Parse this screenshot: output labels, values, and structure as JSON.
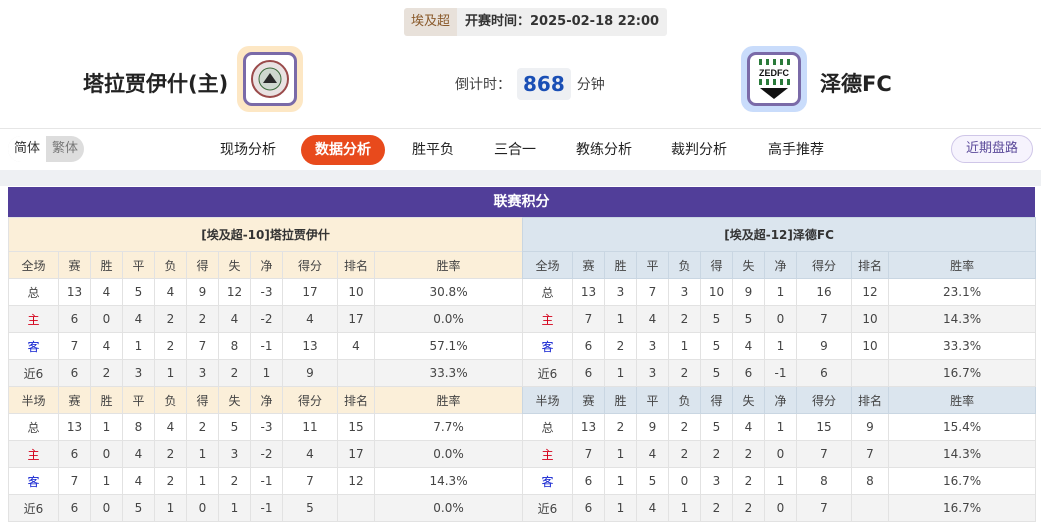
{
  "header": {
    "league": "埃及超",
    "start_time": "开赛时间：2025-02-18 22:00",
    "home_team": "塔拉贾伊什(主)",
    "away_team": "泽德FC",
    "countdown_label": "倒计时：",
    "countdown_value": "868",
    "countdown_unit": "分钟",
    "away_logo_text": "ZEDFC"
  },
  "nav": {
    "lang": [
      "简体",
      "繁体"
    ],
    "items": [
      "现场分析",
      "数据分析",
      "胜平负",
      "三合一",
      "教练分析",
      "裁判分析",
      "高手推荐"
    ],
    "active": 1,
    "recent": "近期盘路"
  },
  "colors": {
    "accent": "#e84a1c",
    "title_bar": "#513e99",
    "home_header": "#fbefd9",
    "away_header": "#dbe5ee"
  },
  "section_title": "联赛积分",
  "columns_full": [
    "全场",
    "赛",
    "胜",
    "平",
    "负",
    "得",
    "失",
    "净",
    "得分",
    "排名",
    "胜率"
  ],
  "columns_half": [
    "半场",
    "赛",
    "胜",
    "平",
    "负",
    "得",
    "失",
    "净",
    "得分",
    "排名",
    "胜率"
  ],
  "home": {
    "title": "[埃及超-10]塔拉贾伊什",
    "full": [
      [
        "总",
        "13",
        "4",
        "5",
        "4",
        "9",
        "12",
        "-3",
        "17",
        "10",
        "30.8%"
      ],
      [
        "主",
        "6",
        "0",
        "4",
        "2",
        "2",
        "4",
        "-2",
        "4",
        "17",
        "0.0%"
      ],
      [
        "客",
        "7",
        "4",
        "1",
        "2",
        "7",
        "8",
        "-1",
        "13",
        "4",
        "57.1%"
      ],
      [
        "近6",
        "6",
        "2",
        "3",
        "1",
        "3",
        "2",
        "1",
        "9",
        "",
        "33.3%"
      ]
    ],
    "half": [
      [
        "总",
        "13",
        "1",
        "8",
        "4",
        "2",
        "5",
        "-3",
        "11",
        "15",
        "7.7%"
      ],
      [
        "主",
        "6",
        "0",
        "4",
        "2",
        "1",
        "3",
        "-2",
        "4",
        "17",
        "0.0%"
      ],
      [
        "客",
        "7",
        "1",
        "4",
        "2",
        "1",
        "2",
        "-1",
        "7",
        "12",
        "14.3%"
      ],
      [
        "近6",
        "6",
        "0",
        "5",
        "1",
        "0",
        "1",
        "-1",
        "5",
        "",
        "0.0%"
      ]
    ]
  },
  "away": {
    "title": "[埃及超-12]泽德FC",
    "full": [
      [
        "总",
        "13",
        "3",
        "7",
        "3",
        "10",
        "9",
        "1",
        "16",
        "12",
        "23.1%"
      ],
      [
        "主",
        "7",
        "1",
        "4",
        "2",
        "5",
        "5",
        "0",
        "7",
        "10",
        "14.3%"
      ],
      [
        "客",
        "6",
        "2",
        "3",
        "1",
        "5",
        "4",
        "1",
        "9",
        "10",
        "33.3%"
      ],
      [
        "近6",
        "6",
        "1",
        "3",
        "2",
        "5",
        "6",
        "-1",
        "6",
        "",
        "16.7%"
      ]
    ],
    "half": [
      [
        "总",
        "13",
        "2",
        "9",
        "2",
        "5",
        "4",
        "1",
        "15",
        "9",
        "15.4%"
      ],
      [
        "主",
        "7",
        "1",
        "4",
        "2",
        "2",
        "2",
        "0",
        "7",
        "7",
        "14.3%"
      ],
      [
        "客",
        "6",
        "1",
        "5",
        "0",
        "3",
        "2",
        "1",
        "8",
        "8",
        "16.7%"
      ],
      [
        "近6",
        "6",
        "1",
        "4",
        "1",
        "2",
        "2",
        "0",
        "7",
        "",
        "16.7%"
      ]
    ]
  }
}
